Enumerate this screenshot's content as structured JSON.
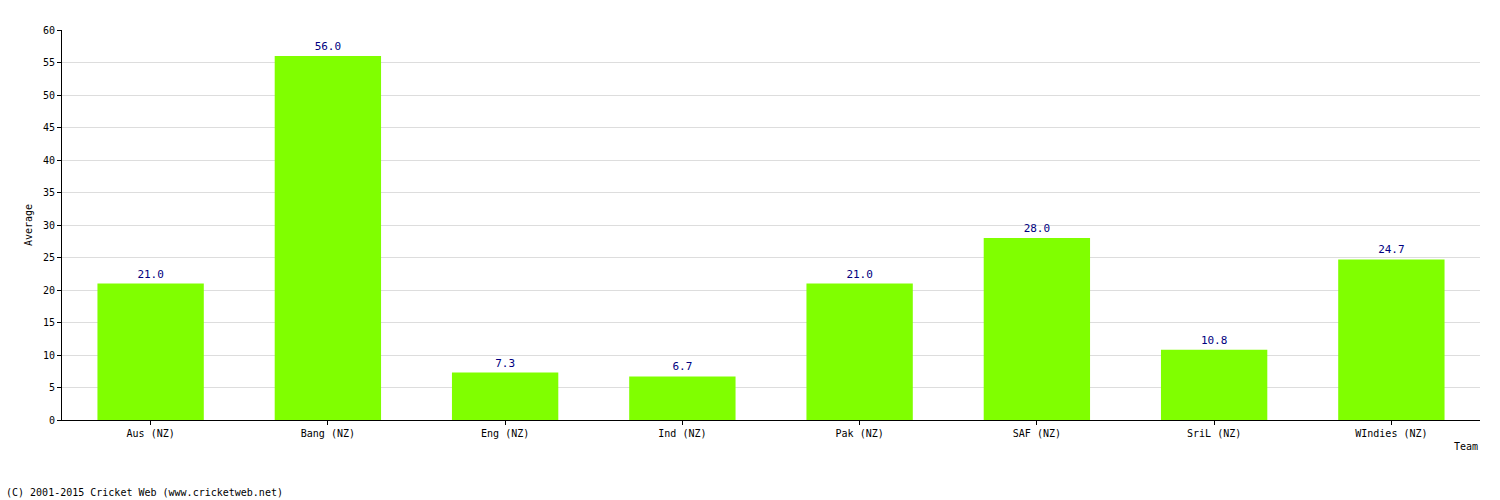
{
  "chart_data": {
    "type": "bar",
    "categories": [
      "Aus (NZ)",
      "Bang (NZ)",
      "Eng (NZ)",
      "Ind (NZ)",
      "Pak (NZ)",
      "SAF (NZ)",
      "SriL (NZ)",
      "WIndies (NZ)"
    ],
    "values": [
      21.0,
      56.0,
      7.3,
      6.7,
      21.0,
      28.0,
      10.8,
      24.7
    ],
    "value_labels": [
      "21.0",
      "56.0",
      "7.3",
      "6.7",
      "21.0",
      "28.0",
      "10.8",
      "24.7"
    ],
    "data_labels": true,
    "color": "#80ff00",
    "x_label": "Team",
    "y_label": "Average",
    "ylim": [
      0,
      60
    ],
    "yticks": [
      0,
      5,
      10,
      15,
      20,
      25,
      30,
      35,
      40,
      45,
      50,
      55,
      60
    ],
    "grid": true,
    "annotations": [
      "(C) 2001-2015 Cricket Web (www.cricketweb.net)"
    ]
  }
}
